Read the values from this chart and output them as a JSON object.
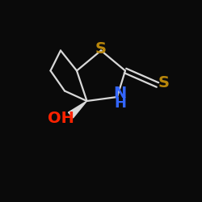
{
  "background_color": "#0a0a0a",
  "bond_color": "#d8d8d8",
  "S_color": "#b8860b",
  "N_color": "#3366ff",
  "O_color": "#ff2200",
  "label_S_ring": "S",
  "label_S_thione": "S",
  "label_NH": "NH",
  "label_N": "N",
  "label_H": "H",
  "label_OH": "OH",
  "font_size": 14,
  "line_width": 1.6,
  "figsize": [
    2.5,
    2.5
  ],
  "dpi": 100,
  "xlim": [
    0,
    10
  ],
  "ylim": [
    0,
    10
  ]
}
